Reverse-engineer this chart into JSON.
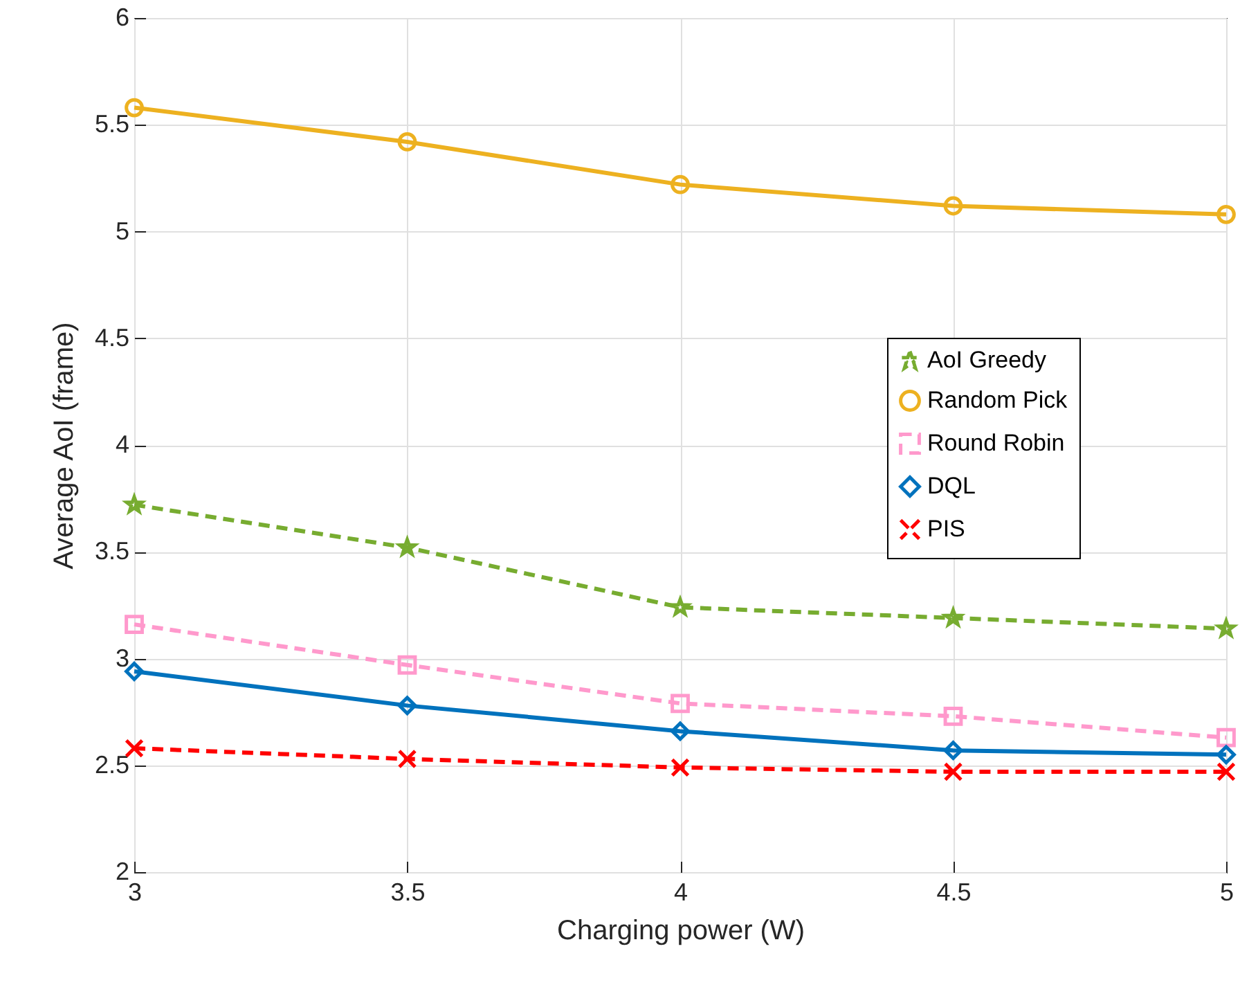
{
  "chart_data": {
    "type": "line",
    "xlabel": "Charging power (W)",
    "ylabel": "Average AoI (frame)",
    "x": [
      3,
      3.5,
      4,
      4.5,
      5
    ],
    "xlim": [
      3,
      5
    ],
    "xticks": [
      3,
      3.5,
      4,
      4.5,
      5
    ],
    "ylim": [
      2,
      6
    ],
    "yticks": [
      2,
      2.5,
      3,
      3.5,
      4,
      4.5,
      5,
      5.5,
      6
    ],
    "grid": true,
    "legend": "right",
    "series": [
      {
        "name": "AoI Greedy",
        "color": "#77ac30",
        "marker": "star",
        "line_style": "dashed",
        "values": [
          3.72,
          3.52,
          3.24,
          3.19,
          3.14
        ]
      },
      {
        "name": "Random Pick",
        "color": "#edb120",
        "marker": "circle",
        "line_style": "solid",
        "values": [
          5.58,
          5.42,
          5.22,
          5.12,
          5.08
        ]
      },
      {
        "name": "Round Robin",
        "color": "#ff99cc",
        "marker": "square",
        "line_style": "dashed",
        "values": [
          3.16,
          2.97,
          2.79,
          2.73,
          2.63
        ]
      },
      {
        "name": "DQL",
        "color": "#0072bd",
        "marker": "diamond",
        "line_style": "solid",
        "values": [
          2.94,
          2.78,
          2.66,
          2.57,
          2.55
        ]
      },
      {
        "name": "PIS",
        "color": "#ff0000",
        "marker": "cross",
        "line_style": "dashed",
        "values": [
          2.58,
          2.53,
          2.49,
          2.47,
          2.47
        ]
      }
    ]
  }
}
